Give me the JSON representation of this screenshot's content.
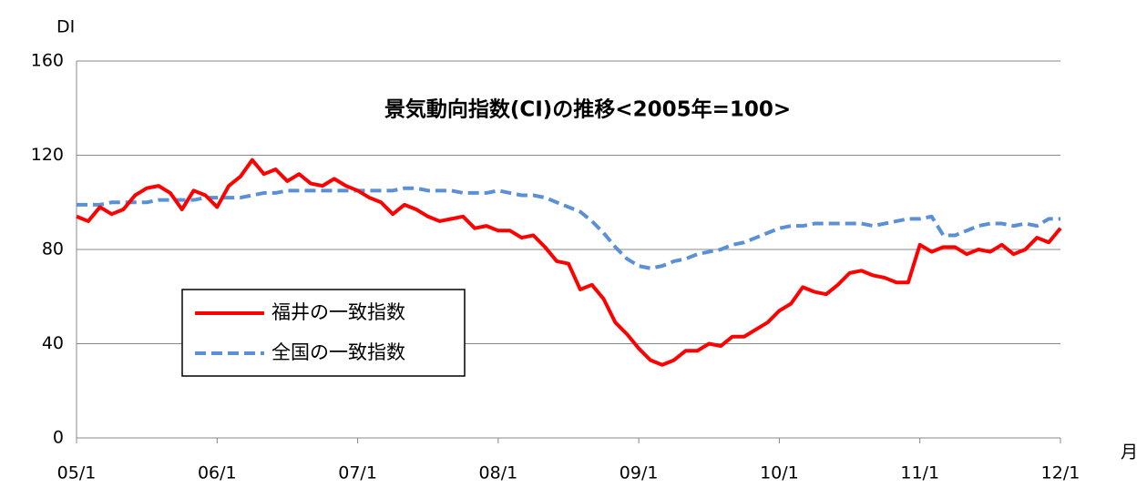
{
  "chart_data": {
    "type": "line",
    "title": "景気動向指数(CI)の推移<2005年=100>",
    "y_label": "DI",
    "x_label": "月",
    "categories": [
      "05/1",
      null,
      null,
      null,
      null,
      null,
      null,
      null,
      null,
      null,
      null,
      null,
      "06/1",
      null,
      null,
      null,
      null,
      null,
      null,
      null,
      null,
      null,
      null,
      null,
      "07/1",
      null,
      null,
      null,
      null,
      null,
      null,
      null,
      null,
      null,
      null,
      null,
      "08/1",
      null,
      null,
      null,
      null,
      null,
      null,
      null,
      null,
      null,
      null,
      null,
      "09/1",
      null,
      null,
      null,
      null,
      null,
      null,
      null,
      null,
      null,
      null,
      null,
      "10/1",
      null,
      null,
      null,
      null,
      null,
      null,
      null,
      null,
      null,
      null,
      null,
      "11/1",
      null,
      null,
      null,
      null,
      null,
      null,
      null,
      null,
      null,
      null,
      null,
      "12/1"
    ],
    "series": [
      {
        "name": "福井の一致指数",
        "color": "#ff0000",
        "line_style": "solid",
        "values": [
          94,
          92,
          98,
          95,
          97,
          103,
          106,
          107,
          104,
          97,
          105,
          103,
          98,
          107,
          111,
          118,
          112,
          114,
          109,
          112,
          108,
          107,
          110,
          107,
          105,
          102,
          100,
          95,
          99,
          97,
          94,
          92,
          93,
          94,
          89,
          90,
          88,
          88,
          85,
          86,
          81,
          75,
          74,
          63,
          65,
          59,
          49,
          44,
          38,
          33,
          31,
          33,
          37,
          37,
          40,
          39,
          43,
          43,
          46,
          49,
          54,
          57,
          64,
          62,
          61,
          65,
          70,
          71,
          69,
          68,
          66,
          66,
          82,
          79,
          81,
          81,
          78,
          80,
          79,
          82,
          78,
          80,
          85,
          83,
          89
        ]
      },
      {
        "name": "全国の一致指数",
        "color": "#5b8fd6",
        "line_style": "dashed",
        "values": [
          99,
          99,
          99,
          100,
          100,
          100,
          100,
          101,
          101,
          101,
          101,
          102,
          102,
          102,
          102,
          103,
          104,
          104,
          105,
          105,
          105,
          105,
          105,
          105,
          105,
          105,
          105,
          105,
          106,
          106,
          105,
          105,
          105,
          104,
          104,
          104,
          105,
          104,
          103,
          103,
          102,
          100,
          98,
          96,
          92,
          87,
          81,
          76,
          73,
          72,
          73,
          75,
          76,
          78,
          79,
          80,
          82,
          83,
          85,
          87,
          89,
          90,
          90,
          91,
          91,
          91,
          91,
          91,
          90,
          91,
          92,
          93,
          93,
          94,
          86,
          86,
          88,
          90,
          91,
          91,
          90,
          91,
          90,
          93,
          93
        ]
      }
    ],
    "ylim": [
      0,
      160
    ],
    "yticks": [
      0,
      40,
      80,
      120,
      160
    ],
    "grid": true,
    "legend": "lower left"
  }
}
